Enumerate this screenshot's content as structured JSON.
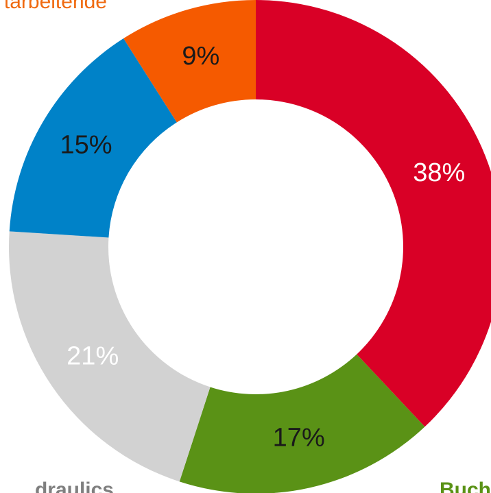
{
  "chart_data": {
    "type": "donut",
    "categories": [
      null,
      "Buch",
      "draulics",
      null,
      "tarbeitende"
    ],
    "values": [
      38,
      17,
      21,
      15,
      9
    ],
    "value_labels": [
      "38%",
      "17%",
      "21%",
      "15%",
      "9%"
    ],
    "colors": [
      "#d90026",
      "#5a9216",
      "#d2d2d2",
      "#0082c8",
      "#f55a00"
    ],
    "value_label_colors": [
      "#ffffff",
      "#1a1a1a",
      "#ffffff",
      "#1a1a1a",
      "#1a1a1a"
    ],
    "category_label_colors": [
      null,
      "#5a9216",
      "#7f7f7f",
      null,
      "#f06a10"
    ]
  }
}
